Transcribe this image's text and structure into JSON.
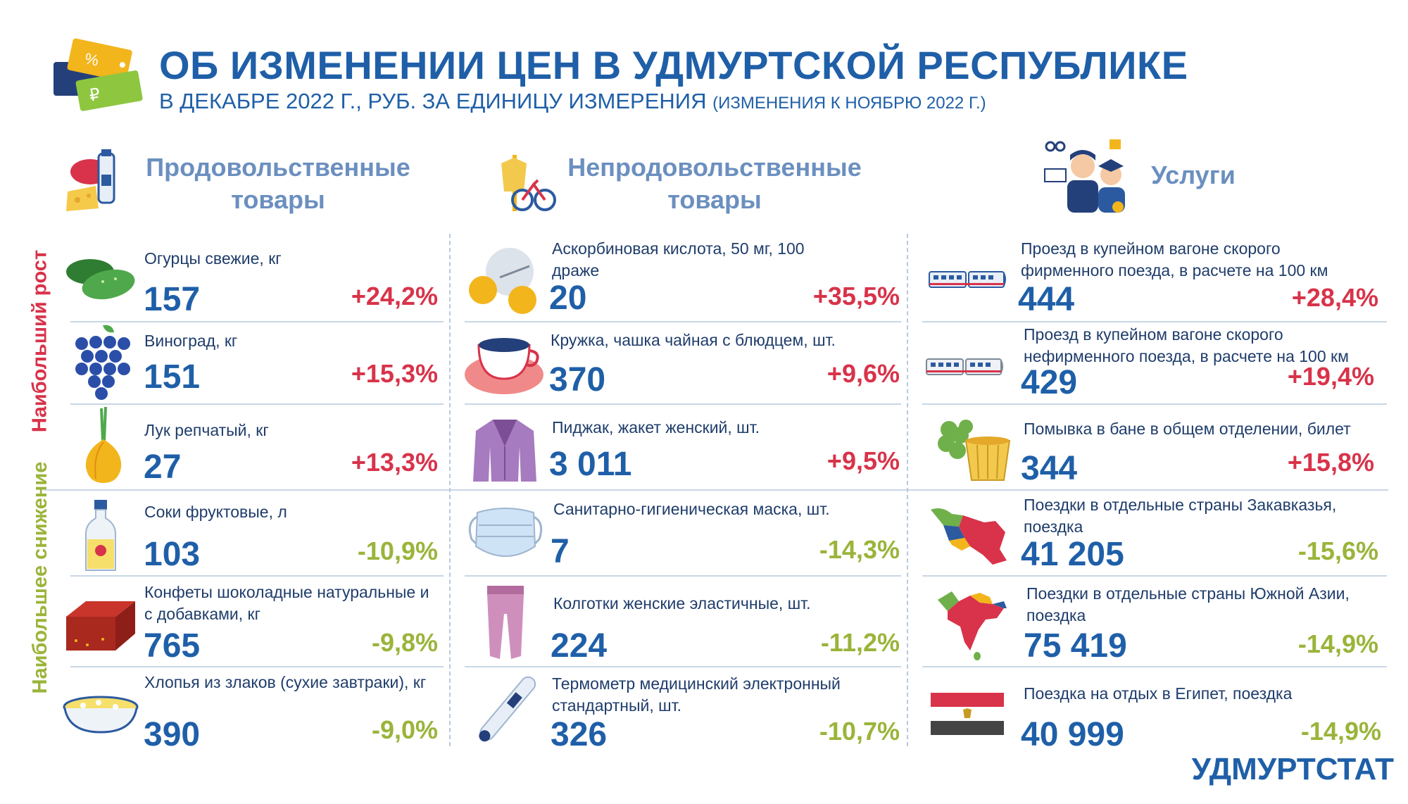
{
  "header": {
    "title": "ОБ ИЗМЕНЕНИИ ЦЕН В УДМУРТСКОЙ РЕСПУБЛИКЕ",
    "subtitle_main": "В ДЕКАБРЕ 2022 Г., РУБ. ЗА ЕДИНИЦУ ИЗМЕРЕНИЯ",
    "subtitle_note": "(ИЗМЕНЕНИЯ К НОЯБРЮ 2022 Г.)"
  },
  "categories": {
    "food": "Продовольственные товары",
    "nonfood": "Непродовольственные товары",
    "services": "Услуги"
  },
  "side_labels": {
    "growth": "Наибольший рост",
    "decline": "Наибольшее снижение"
  },
  "colors": {
    "title_blue": "#1f5fa8",
    "growth_red": "#d8334a",
    "decline_green": "#9ab43a"
  },
  "food": [
    {
      "label": "Огурцы свежие, кг",
      "price": "157",
      "change": "+24,2%",
      "icon": "cucumber-icon"
    },
    {
      "label": "Виноград, кг",
      "price": "151",
      "change": "+15,3%",
      "icon": "grapes-icon"
    },
    {
      "label": "Лук репчатый, кг",
      "price": "27",
      "change": "+13,3%",
      "icon": "onion-icon"
    },
    {
      "label": "Соки фруктовые, л",
      "price": "103",
      "change": "-10,9%",
      "icon": "juice-icon"
    },
    {
      "label": "Конфеты шоколадные натуральные и с добавками, кг",
      "price": "765",
      "change": "-9,8%",
      "icon": "chocolate-icon"
    },
    {
      "label": "Хлопья из злаков (сухие завтраки), кг",
      "price": "390",
      "change": "-9,0%",
      "icon": "cereal-bowl-icon"
    }
  ],
  "nonfood": [
    {
      "label": "Аскорбиновая кислота, 50 мг, 100 драже",
      "price": "20",
      "change": "+35,5%",
      "icon": "vitamin-icon"
    },
    {
      "label": "Кружка, чашка чайная с блюдцем, шт.",
      "price": "370",
      "change": "+9,6%",
      "icon": "teacup-icon"
    },
    {
      "label": "Пиджак, жакет женский, шт.",
      "price": "3 011",
      "change": "+9,5%",
      "icon": "jacket-icon"
    },
    {
      "label": "Санитарно-гигиеническая маска, шт.",
      "price": "7",
      "change": "-14,3%",
      "icon": "mask-icon"
    },
    {
      "label": "Колготки женские эластичные, шт.",
      "price": "224",
      "change": "-11,2%",
      "icon": "tights-icon"
    },
    {
      "label": "Термометр медицинский электронный стандартный, шт.",
      "price": "326",
      "change": "-10,7%",
      "icon": "thermometer-icon"
    }
  ],
  "services": [
    {
      "label": "Проезд в купейном вагоне скорого фирменного поезда, в расчете на 100 км",
      "price": "444",
      "change": "+28,4%",
      "icon": "train-icon"
    },
    {
      "label": "Проезд в купейном вагоне скорого нефирменного поезда, в расчете на 100 км",
      "price": "429",
      "change": "+19,4%",
      "icon": "train-icon"
    },
    {
      "label": "Помывка в бане в общем отделении, билет",
      "price": "344",
      "change": "+15,8%",
      "icon": "bath-icon"
    },
    {
      "label": "Поездки в отдельные страны Закавказья, поездка",
      "price": "41 205",
      "change": "-15,6%",
      "icon": "caucasus-map-icon"
    },
    {
      "label": "Поездки в отдельные страны Южной Азии, поездка",
      "price": "75 419",
      "change": "-14,9%",
      "icon": "south-asia-map-icon"
    },
    {
      "label": "Поездка на отдых в Египет, поездка",
      "price": "40 999",
      "change": "-14,9%",
      "icon": "egypt-flag-icon"
    }
  ],
  "brand": "УДМУРТСТАТ"
}
